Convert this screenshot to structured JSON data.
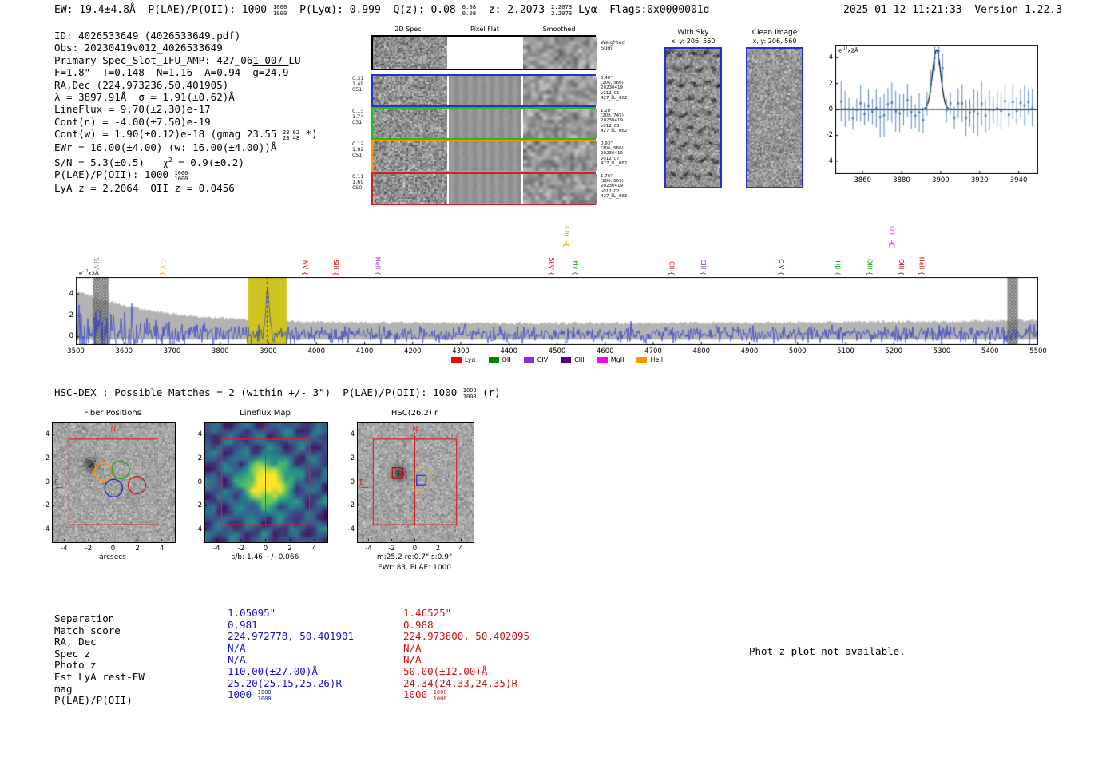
{
  "header": {
    "left_segments": [
      {
        "t": "EW: 19.4±4.8Å  P(LAE)/P(OII): 1000 "
      },
      {
        "frac": [
          "1000",
          "1000"
        ]
      },
      {
        "t": "  P(Lyα): 0.999  Q(z): 0.08 "
      },
      {
        "frac": [
          "0.08",
          "0.08"
        ]
      },
      {
        "t": "  z: 2.2073 "
      },
      {
        "frac": [
          "2.2073",
          "2.2073"
        ]
      },
      {
        "t": " Lyα  Flags:0x0000001d"
      }
    ],
    "right": "2025-01-12 11:21:33  Version 1.22.3"
  },
  "info_lines": [
    [
      {
        "t": "ID: 4026533649 (4026533649.pdf)"
      }
    ],
    [
      {
        "t": "Obs: 20230419v012_4026533649"
      }
    ],
    [
      {
        "t": "Primary Spec_Slot_IFU_AMP: 427_061_007_LU"
      }
    ],
    [
      {
        "t": "F=1.8\"  T=0.148  N=1.16  A=0.94  "
      },
      {
        "over": "g=24.9"
      }
    ],
    [
      {
        "t": "RA,Dec (224.973236,50.401905)"
      }
    ],
    [
      {
        "t": "λ = 3897.91Å  σ = 1.91(±0.62)Å"
      }
    ],
    [
      {
        "t": "LineFlux = 9.70(±2.30)e-17"
      }
    ],
    [
      {
        "t": "Cont(n) = -4.00(±7.50)e-19"
      }
    ],
    [
      {
        "t": "Cont(w) = 1.90(±0.12)e-18 (gmag 23.55 "
      },
      {
        "frac": [
          "23.62",
          "23.48"
        ]
      },
      {
        "t": " *)"
      }
    ],
    [
      {
        "t": "EWr = 16.00(±4.00) (w: 16.00(±4.00))Å"
      }
    ],
    [
      {
        "t": "S/N = 5.3(±0.5)   χ"
      },
      {
        "sup": "2"
      },
      {
        "t": " = 0.9(±0.2)"
      }
    ],
    [
      {
        "t": "P(LAE)/P(OII): 1000 "
      },
      {
        "frac": [
          "1000",
          "1000"
        ]
      }
    ],
    [
      {
        "t": "LyA z = 2.2064  OII z = 0.0456"
      }
    ]
  ],
  "cutout2d": {
    "headers": [
      "2D Spec",
      "Pixel Flat",
      "Smoothed"
    ],
    "rows": [
      {
        "border": "#000000",
        "left": [],
        "note": [
          "Weighted",
          "Sum"
        ]
      },
      {
        "border": "#2233cc",
        "left": [
          "0.31",
          "1.49",
          "051"
        ],
        "note": [
          "0.48\"",
          "(206, 560)",
          "20230419",
          "v012_01",
          "427_LU_062"
        ]
      },
      {
        "border": "#22bb22",
        "left": [
          "0.13",
          "1.74",
          "031"
        ],
        "note": [
          "1.28\"",
          "(208, 745)",
          "20230419",
          "v012_03",
          "427_LU_062"
        ]
      },
      {
        "border": "#ff9900",
        "left": [
          "0.12",
          "1.82",
          "051"
        ],
        "note": [
          "0.93\"",
          "(206, 560)",
          "20230419",
          "v012_07",
          "427_LU_062"
        ]
      },
      {
        "border": "#cc2222",
        "left": [
          "0.11",
          "1.69",
          "050"
        ],
        "note": [
          "1.76\"",
          "(206, 569)",
          "20230419",
          "v012_02",
          "427_LU_063"
        ]
      }
    ]
  },
  "with_sky": {
    "title": "With Sky",
    "subtitle": "x, y: 206, 560"
  },
  "clean_image": {
    "title": "Clean Image",
    "subtitle": "x, y: 206, 560"
  },
  "hsc_line_segments": [
    {
      "t": "HSC-DEX : Possible Matches = 2 (within +/- 3\")  P(LAE)/P(OII): 1000 "
    },
    {
      "frac": [
        "1000",
        "1000"
      ]
    },
    {
      "t": " (r)"
    }
  ],
  "cutouts": {
    "fiber": {
      "title": "Fiber Positions",
      "xlabel": "arcsecs",
      "compass_n": "N",
      "compass_e": "E"
    },
    "lineflux": {
      "title": "Lineflux Map",
      "xlabel": "s/b: 1.46 +/- 0.066",
      "compass_n": "N",
      "compass_e": "E"
    },
    "hsc": {
      "title": "HSC(26.2) r",
      "xlabel": "m:25.2 re:0.7\" s:0.9\"",
      "xlabel2": "EWr: 83, PLAE: 1000",
      "compass_n": "N",
      "compass_e": "E"
    }
  },
  "match_table": {
    "row_labels": [
      "Separation",
      "Match score",
      "RA, Dec",
      "Spec z",
      "Photo z",
      "Est LyA rest-EW",
      "mag",
      "P(LAE)/P(OII)"
    ],
    "columns": [
      {
        "color": "#1111cc",
        "values": [
          "1.05095\"",
          "0.981",
          "224.972778, 50.401901",
          "N/A",
          "N/A",
          "110.00(±27.00)Å",
          "25.20(25.15,25.26)R"
        ],
        "plae_pre": "1000 ",
        "plae_frac": [
          "1000",
          "1000"
        ]
      },
      {
        "color": "#cc1111",
        "values": [
          "1.46525\"",
          "0.988",
          "224.973800, 50.402095",
          "N/A",
          "N/A",
          "50.00(±12.00)Å",
          "24.34(24.33,24.35)R"
        ],
        "plae_pre": "1000 ",
        "plae_frac": [
          "1000",
          "1000"
        ]
      }
    ]
  },
  "phot_z_note": "Phot z plot not available.",
  "chart_data": [
    {
      "id": "zoom_spectrum",
      "type": "scatter",
      "title": "",
      "ylabel": "e-17x2Å",
      "ylabel_segments": [
        {
          "t": "e"
        },
        {
          "sup": "-17"
        },
        {
          "t": "x2Å"
        }
      ],
      "xlim": [
        3846,
        3950
      ],
      "ylim": [
        -5,
        5
      ],
      "xticks": [
        3860,
        3880,
        3900,
        3920,
        3940
      ],
      "yticks": [
        -4,
        -2,
        0,
        2,
        4
      ],
      "gaussian": {
        "center": 3897.91,
        "sigma": 2.1,
        "amplitude": 4.6
      },
      "point_spacing": 2,
      "noise_sd": 1.0,
      "errorbar": 1.3,
      "point_color": "#4477bb",
      "fit_color": "#000000"
    },
    {
      "id": "main_spectrum",
      "type": "line",
      "title": "",
      "ylabel": "e-17x2Å",
      "ylabel_segments": [
        {
          "t": "e"
        },
        {
          "sup": "-17"
        },
        {
          "t": "x2Å"
        }
      ],
      "xlim": [
        3500,
        5500
      ],
      "ylim": [
        -0.8,
        5.6
      ],
      "xticks": [
        3500,
        3600,
        3700,
        3800,
        3900,
        4000,
        4100,
        4200,
        4300,
        4400,
        4500,
        4600,
        4700,
        4800,
        4900,
        5000,
        5100,
        5200,
        5300,
        5400,
        5500
      ],
      "yticks": [
        0,
        2,
        4
      ],
      "line_color": "#2233cc",
      "envelope_color": "#b3b3b3",
      "highlight_band": {
        "x0": 3858,
        "x1": 3938,
        "color": "#cfc420"
      },
      "center_line": 3897.91,
      "hatch_bands": [
        [
          3535,
          3568
        ],
        [
          5436,
          5458
        ]
      ],
      "gaussian": {
        "center": 3897.91,
        "sigma": 3.2,
        "amplitude": 4.2
      },
      "annotations": [
        {
          "label": "SiIV",
          "x": 3542,
          "color": "#888888",
          "tier": 0
        },
        {
          "label": "CIV",
          "x": 3681,
          "color": "#ff9900",
          "tier": 0
        },
        {
          "label": "NV",
          "x": 3976,
          "color": "#cc0000",
          "tier": 0
        },
        {
          "label": "SiII",
          "x": 4040,
          "color": "#cc0000",
          "tier": 0
        },
        {
          "label": "HeII",
          "x": 4127,
          "color": "#8833cc",
          "tier": 0
        },
        {
          "label": "SiIV",
          "x": 4488,
          "color": "#cc0000",
          "tier": 0
        },
        {
          "label": "CIII",
          "x": 4520,
          "color": "#ff9900",
          "tier": 1
        },
        {
          "label": "Hγ",
          "x": 4538,
          "color": "#009900",
          "tier": 0
        },
        {
          "label": "CII",
          "x": 4738,
          "color": "#cc0000",
          "tier": 0
        },
        {
          "label": "CIII",
          "x": 4804,
          "color": "#8833cc",
          "tier": 0
        },
        {
          "label": "CIV",
          "x": 4966,
          "color": "#cc0000",
          "tier": 0
        },
        {
          "label": "Hβ",
          "x": 5083,
          "color": "#009900",
          "tier": 0
        },
        {
          "label": "OIII",
          "x": 5150,
          "color": "#009900",
          "tier": 0
        },
        {
          "label": "OII",
          "x": 5196,
          "color": "#ff22ff",
          "tier": 1
        },
        {
          "label": "OIII",
          "x": 5215,
          "color": "#cc0000",
          "tier": 0
        },
        {
          "label": "HeII",
          "x": 5258,
          "color": "#cc0000",
          "tier": 0
        }
      ],
      "legend": [
        {
          "label": "Lyα",
          "color": "#ff0000"
        },
        {
          "label": "OII",
          "color": "#008800"
        },
        {
          "label": "CIV",
          "color": "#8a2be2"
        },
        {
          "label": "CIII",
          "color": "#4b0082"
        },
        {
          "label": "MgII",
          "color": "#ff00ff"
        },
        {
          "label": "HeII",
          "color": "#ff9900"
        }
      ],
      "legend_position": "bottom-center"
    },
    {
      "id": "fiber_positions",
      "type": "cutout",
      "lim": [
        -5,
        5
      ],
      "ticks": [
        -4,
        -2,
        0,
        2,
        4
      ],
      "square_half": 3.6,
      "fiber_grid": {
        "rows": 5,
        "row_spacing": 1.3,
        "col_spacing": 1.44,
        "radius": 0.72
      },
      "fiber_highlights": [
        {
          "x": -0.78,
          "y": 0.85,
          "color": "#ff9900"
        },
        {
          "x": 0.62,
          "y": 1.02,
          "color": "#22aa22"
        },
        {
          "x": 0.05,
          "y": -0.52,
          "color": "#2233cc"
        },
        {
          "x": 1.95,
          "y": -0.28,
          "color": "#cc2222"
        }
      ],
      "blob": {
        "x": -1.9,
        "y": 1.6
      }
    },
    {
      "id": "lineflux_map",
      "type": "heatmap",
      "lim": [
        -5,
        5
      ],
      "ticks": [
        -4,
        -2,
        0,
        2,
        4
      ],
      "square_half": 3.6,
      "peak": {
        "x": 0,
        "y": 0,
        "sigma": 1.25
      }
    },
    {
      "id": "hsc_r",
      "type": "cutout",
      "lim": [
        -5,
        5
      ],
      "ticks": [
        -4,
        -2,
        0,
        2,
        4
      ],
      "square_half": 3.6,
      "markers": [
        {
          "type": "square",
          "x": -1.5,
          "y": 0.75,
          "half": 0.45,
          "color": "#cc0000"
        },
        {
          "type": "square",
          "x": 0.55,
          "y": 0.15,
          "half": 0.4,
          "color": "#2244cc"
        },
        {
          "type": "dashed_circle",
          "x": 0.55,
          "y": 0.15,
          "r": 1.05,
          "color": "#c8a400"
        }
      ],
      "cross": {
        "x": 0,
        "y": 0,
        "color": "#cc2222"
      },
      "blob": {
        "x": -1.5,
        "y": 0.8
      }
    }
  ]
}
